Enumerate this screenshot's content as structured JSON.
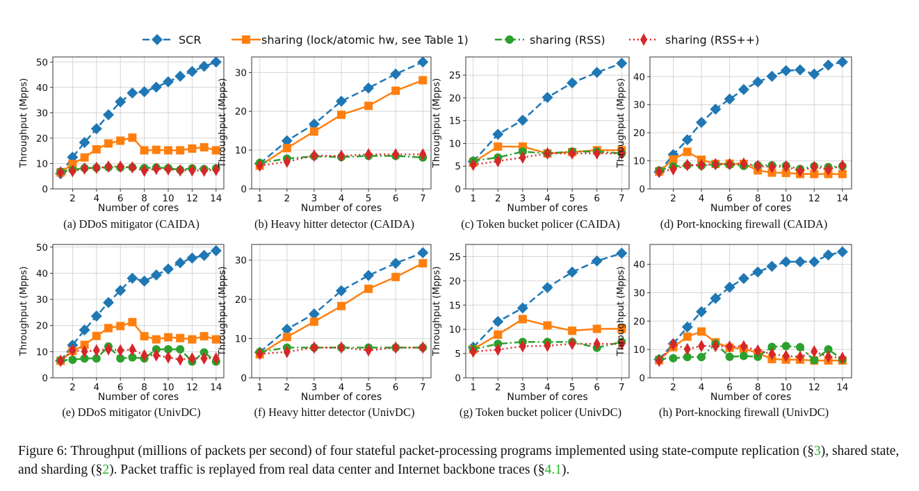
{
  "legend": [
    {
      "label": "SCR",
      "color": "#1f77b4",
      "marker": "diamond",
      "dash": "dashed"
    },
    {
      "label": "sharing (lock/atomic hw, see Table 1)",
      "color": "#ff7f0e",
      "marker": "square",
      "dash": "solid"
    },
    {
      "label": "sharing (RSS)",
      "color": "#2ca02c",
      "marker": "circle",
      "dash": "dashdot"
    },
    {
      "label": "sharing (RSS++)",
      "color": "#d62728",
      "marker": "thin-diamond",
      "dash": "dotted"
    }
  ],
  "figure_caption": {
    "p1": "Figure 6: Throughput (millions of packets per second) of four stateful packet-processing programs implemented using state-compute replication (§",
    "ref1": "3",
    "p2": "), shared state, and sharding (§",
    "ref2": "2",
    "p3": "). Packet traffic is replayed from real data center and Internet backbone traces (§",
    "ref3": "4.1",
    "p4": ")."
  },
  "chart_data": [
    {
      "type": "line",
      "title": "(a) DDoS mitigator (CAIDA)",
      "xlabel": "Number of cores",
      "ylabel": "Throughput (Mpps)",
      "ylim": [
        0,
        52
      ],
      "xticks": [
        2,
        4,
        6,
        8,
        10,
        12,
        14
      ],
      "yticks": [
        0,
        10,
        20,
        30,
        40,
        50
      ],
      "grid": true,
      "x": [
        1,
        2,
        3,
        4,
        5,
        6,
        7,
        8,
        9,
        10,
        11,
        12,
        13,
        14
      ],
      "series": [
        {
          "name": "SCR",
          "values": [
            6,
            12.5,
            18.3,
            23.7,
            29.2,
            34.3,
            37.8,
            38.3,
            40.1,
            42.2,
            44.4,
            46.3,
            48.3,
            50
          ]
        },
        {
          "name": "sharing (lock/atomic hw, see Table 1)",
          "values": [
            6.5,
            9.8,
            12.4,
            15.6,
            17.9,
            19,
            20.2,
            15.2,
            15.4,
            15.2,
            15.2,
            15.9,
            16.4,
            15.2
          ]
        },
        {
          "name": "sharing (RSS)",
          "values": [
            6.8,
            7.5,
            8.2,
            8.3,
            8.5,
            8.4,
            8.5,
            8.2,
            8.4,
            8.2,
            7.5,
            8.1,
            7.8,
            8.1
          ]
        },
        {
          "name": "sharing (RSS++)",
          "values": [
            6.5,
            7,
            8,
            8.3,
            8.8,
            8.8,
            8.5,
            7.2,
            7.9,
            7.7,
            7.3,
            7.3,
            7.2,
            7.5
          ]
        }
      ]
    },
    {
      "type": "line",
      "title": "(b) Heavy hitter detector (CAIDA)",
      "xlabel": "Number of cores",
      "ylabel": "Throughput (Mpps)",
      "ylim": [
        0,
        34
      ],
      "xticks": [
        1,
        2,
        3,
        4,
        5,
        6,
        7
      ],
      "yticks": [
        0,
        10,
        20,
        30
      ],
      "grid": true,
      "x": [
        1,
        2,
        3,
        4,
        5,
        6,
        7
      ],
      "series": [
        {
          "name": "SCR",
          "values": [
            6.5,
            12.4,
            16.7,
            22.6,
            26,
            29.6,
            32.7
          ]
        },
        {
          "name": "sharing (lock/atomic hw, see Table 1)",
          "values": [
            6,
            10.5,
            14.8,
            19.1,
            21.4,
            25.3,
            28
          ]
        },
        {
          "name": "sharing (RSS)",
          "values": [
            6.7,
            7.8,
            8.4,
            8.2,
            8.5,
            8.5,
            8.1
          ]
        },
        {
          "name": "sharing (RSS++)",
          "values": [
            6,
            7,
            8.6,
            8.5,
            8.9,
            8.9,
            8.9
          ]
        }
      ]
    },
    {
      "type": "line",
      "title": "(c) Token bucket policer (CAIDA)",
      "xlabel": "Number of cores",
      "ylabel": "Throughput (Mpps)",
      "ylim": [
        0,
        29
      ],
      "xticks": [
        1,
        2,
        3,
        4,
        5,
        6,
        7
      ],
      "yticks": [
        0,
        5,
        10,
        15,
        20,
        25
      ],
      "grid": true,
      "x": [
        1,
        2,
        3,
        4,
        5,
        6,
        7
      ],
      "series": [
        {
          "name": "SCR",
          "values": [
            6,
            12,
            15.1,
            20.1,
            23.3,
            25.6,
            27.6
          ]
        },
        {
          "name": "sharing (lock/atomic hw, see Table 1)",
          "values": [
            5.8,
            9.3,
            9.3,
            7.8,
            8.1,
            8.5,
            8.5
          ]
        },
        {
          "name": "sharing (RSS)",
          "values": [
            6.2,
            6.9,
            8.2,
            7.8,
            8.2,
            8.2,
            7.8
          ]
        },
        {
          "name": "sharing (RSS++)",
          "values": [
            5.3,
            6.1,
            6.9,
            7.8,
            7.8,
            7.8,
            7.8
          ]
        }
      ]
    },
    {
      "type": "line",
      "title": "(d) Port-knocking firewall (CAIDA)",
      "xlabel": "Number of cores",
      "ylabel": "Throughput (Mpps)",
      "ylim": [
        0,
        47
      ],
      "xticks": [
        2,
        4,
        6,
        8,
        10,
        12,
        14
      ],
      "yticks": [
        0,
        10,
        20,
        30,
        40
      ],
      "grid": true,
      "x": [
        1,
        2,
        3,
        4,
        5,
        6,
        7,
        8,
        9,
        10,
        11,
        12,
        13,
        14
      ],
      "series": [
        {
          "name": "SCR",
          "values": [
            6,
            12.2,
            17.5,
            23.7,
            28.4,
            32,
            35.4,
            38.1,
            40.1,
            42.1,
            42.4,
            40.9,
            44.1,
            45.2
          ]
        },
        {
          "name": "sharing (lock/atomic hw, see Table 1)",
          "values": [
            6.2,
            10.5,
            13.2,
            10.4,
            8.9,
            9,
            8.9,
            6.6,
            5.8,
            5.7,
            5.3,
            5.3,
            5.3,
            5.3
          ]
        },
        {
          "name": "sharing (RSS)",
          "values": [
            6.6,
            8,
            8.4,
            8.3,
            8.7,
            8.6,
            8.2,
            8.4,
            8.4,
            8.3,
            7.1,
            8.1,
            7.8,
            8.1
          ]
        },
        {
          "name": "sharing (RSS++)",
          "values": [
            6.1,
            7,
            8.5,
            8.5,
            8.8,
            8.8,
            9,
            8.2,
            7.8,
            8,
            6.4,
            7.8,
            6.9,
            8.3
          ]
        }
      ]
    },
    {
      "type": "line",
      "title": "(e) DDoS mitigator (UnivDC)",
      "xlabel": "Number of cores",
      "ylabel": "Throughput (Mpps)",
      "ylim": [
        0,
        51
      ],
      "xticks": [
        2,
        4,
        6,
        8,
        10,
        12,
        14
      ],
      "yticks": [
        0,
        10,
        20,
        30,
        40,
        50
      ],
      "grid": true,
      "x": [
        1,
        2,
        3,
        4,
        5,
        6,
        7,
        8,
        9,
        10,
        11,
        12,
        13,
        14
      ],
      "series": [
        {
          "name": "SCR",
          "values": [
            6.5,
            12.5,
            18.3,
            23.6,
            28.8,
            33.4,
            38.1,
            37,
            39.3,
            41.6,
            44,
            45.8,
            46.8,
            48.6
          ]
        },
        {
          "name": "sharing (lock/atomic hw, see Table 1)",
          "values": [
            6.5,
            10.2,
            12.6,
            16,
            19,
            19.8,
            21.3,
            15.9,
            14.7,
            15.5,
            15.2,
            14.7,
            15.9,
            14.7
          ]
        },
        {
          "name": "sharing (RSS)",
          "values": [
            6.7,
            6.9,
            7.4,
            7.4,
            12,
            7.4,
            7.8,
            7.4,
            10.9,
            10.9,
            10.9,
            6.2,
            9.7,
            6.2
          ]
        },
        {
          "name": "sharing (RSS++)",
          "values": [
            6.5,
            10.6,
            10.1,
            10.5,
            10.9,
            10.5,
            10.8,
            8.6,
            8.6,
            7.8,
            7,
            7.4,
            7.4,
            7.4
          ]
        }
      ]
    },
    {
      "type": "line",
      "title": "(f) Heavy hitter detector (UnivDC)",
      "xlabel": "Number of cores",
      "ylabel": "Throughput (Mpps)",
      "ylim": [
        0,
        34
      ],
      "xticks": [
        1,
        2,
        3,
        4,
        5,
        6,
        7
      ],
      "yticks": [
        0,
        10,
        20,
        30
      ],
      "grid": true,
      "x": [
        1,
        2,
        3,
        4,
        5,
        6,
        7
      ],
      "series": [
        {
          "name": "SCR",
          "values": [
            6.5,
            12.4,
            16.3,
            22.2,
            26.1,
            29.2,
            31.9
          ]
        },
        {
          "name": "sharing (lock/atomic hw, see Table 1)",
          "values": [
            6,
            10.4,
            14.3,
            18.3,
            22.7,
            25.7,
            29.2
          ]
        },
        {
          "name": "sharing (RSS)",
          "values": [
            6.6,
            7.7,
            7.7,
            7.7,
            7.7,
            7.7,
            7.7
          ]
        },
        {
          "name": "sharing (RSS++)",
          "values": [
            6.1,
            6.6,
            7.7,
            7.7,
            7,
            7.7,
            7.7
          ]
        }
      ]
    },
    {
      "type": "line",
      "title": "(g) Token bucket policer (UnivDC)",
      "xlabel": "Number of cores",
      "ylabel": "Throughput (Mpps)",
      "ylim": [
        0,
        27.5
      ],
      "xticks": [
        1,
        2,
        3,
        4,
        5,
        6,
        7
      ],
      "yticks": [
        0,
        5,
        10,
        15,
        20,
        25
      ],
      "grid": true,
      "x": [
        1,
        2,
        3,
        4,
        5,
        6,
        7
      ],
      "series": [
        {
          "name": "SCR",
          "values": [
            6.3,
            11.6,
            14.4,
            18.6,
            21.8,
            24.1,
            25.7
          ]
        },
        {
          "name": "sharing (lock/atomic hw, see Table 1)",
          "values": [
            5.9,
            8.9,
            12.1,
            10.8,
            9.7,
            10.1,
            10.1
          ]
        },
        {
          "name": "sharing (RSS)",
          "values": [
            5.9,
            7,
            7.4,
            7.4,
            7.4,
            6.2,
            7.4
          ]
        },
        {
          "name": "sharing (RSS++)",
          "values": [
            5.4,
            5.8,
            6.5,
            6.6,
            7,
            7,
            7
          ]
        }
      ]
    },
    {
      "type": "line",
      "title": "(h) Port-knocking firewall (UnivDC)",
      "xlabel": "Number of cores",
      "ylabel": "Throughput (Mpps)",
      "ylim": [
        0,
        47
      ],
      "xticks": [
        2,
        4,
        6,
        8,
        10,
        12,
        14
      ],
      "yticks": [
        0,
        10,
        20,
        30,
        40
      ],
      "grid": true,
      "x": [
        1,
        2,
        3,
        4,
        5,
        6,
        7,
        8,
        9,
        10,
        11,
        12,
        13,
        14
      ],
      "series": [
        {
          "name": "SCR",
          "values": [
            6.5,
            12,
            17.9,
            23.3,
            28,
            31.9,
            35,
            37.3,
            39.3,
            40.9,
            40.9,
            40.9,
            43.3,
            44.4
          ]
        },
        {
          "name": "sharing (lock/atomic hw, see Table 1)",
          "values": [
            6.2,
            10.8,
            14.5,
            16.3,
            12.5,
            10.6,
            10.3,
            8.7,
            6.6,
            6.4,
            6.4,
            6.1,
            6.1,
            6.1
          ]
        },
        {
          "name": "sharing (RSS)",
          "values": [
            6.6,
            6.9,
            7.3,
            7.3,
            12,
            7.4,
            7.7,
            7.4,
            10.9,
            11.2,
            10.8,
            6.2,
            10,
            6.5
          ]
        },
        {
          "name": "sharing (RSS++)",
          "values": [
            6,
            11.8,
            10.1,
            11.2,
            11.2,
            11,
            11.1,
            9.6,
            8.4,
            7.7,
            7.4,
            9.3,
            7.4,
            7
          ]
        }
      ]
    }
  ]
}
